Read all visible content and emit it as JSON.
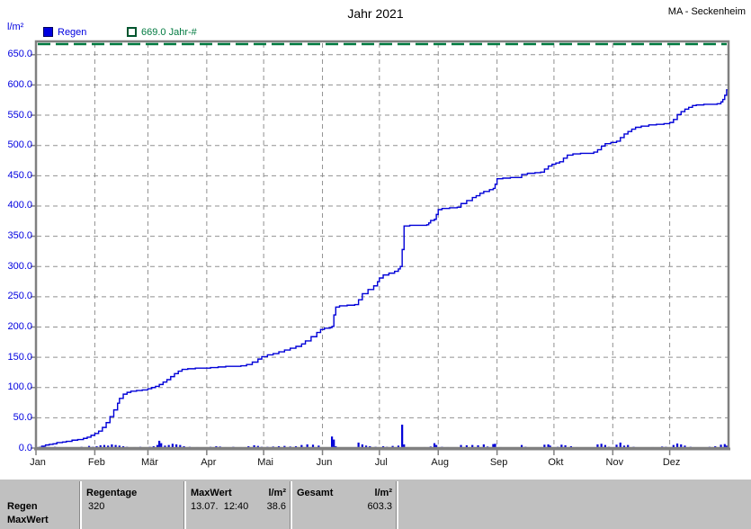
{
  "header": {
    "title": "Jahr 2021",
    "station": "MA - Seckenheim",
    "y_unit": "l/m²"
  },
  "legend": {
    "regen_label": "Regen",
    "threshold_label": "669.0 Jahr-#"
  },
  "colors": {
    "blue": "#0000d8",
    "blue_text": "#0000e0",
    "green": "#007a40",
    "grid": "#909090",
    "frame": "#808080",
    "table_bg": "#c0c0c0"
  },
  "chart_data": {
    "type": "line",
    "title": "Jahr 2021",
    "ylabel": "l/m²",
    "ylim": [
      0,
      672
    ],
    "grid": true,
    "threshold": {
      "value": 669,
      "label": "669.0 Jahr-#"
    },
    "y_tick_step": 50,
    "y_tick_labels": [
      "650.0",
      "600.0",
      "550.0",
      "500.0",
      "450.0",
      "400.0",
      "350.0",
      "300.0",
      "250.0",
      "200.0",
      "150.0",
      "100.0",
      "50.0",
      "0.0"
    ],
    "y_tick_values": [
      650,
      600,
      550,
      500,
      450,
      400,
      350,
      300,
      250,
      200,
      150,
      100,
      50,
      0
    ],
    "months": [
      "Jan",
      "Feb",
      "Mär",
      "Apr",
      "Mai",
      "Jun",
      "Jul",
      "Aug",
      "Sep",
      "Okt",
      "Nov",
      "Dez"
    ],
    "month_start_days": [
      0,
      31,
      59,
      90,
      120,
      151,
      181,
      212,
      243,
      273,
      304,
      334
    ],
    "days_in_year": 365,
    "series": [
      {
        "name": "Regen kumuliert (l/m²)",
        "points": [
          [
            0,
            0
          ],
          [
            2,
            1
          ],
          [
            3,
            3
          ],
          [
            5,
            5
          ],
          [
            7,
            6
          ],
          [
            9,
            7
          ],
          [
            11,
            9
          ],
          [
            14,
            10
          ],
          [
            16,
            11
          ],
          [
            19,
            13
          ],
          [
            22,
            14
          ],
          [
            25,
            16
          ],
          [
            27,
            18
          ],
          [
            29,
            21
          ],
          [
            31,
            24
          ],
          [
            33,
            28
          ],
          [
            35,
            34
          ],
          [
            37,
            42
          ],
          [
            39,
            52
          ],
          [
            41,
            63
          ],
          [
            43,
            74
          ],
          [
            44,
            82
          ],
          [
            46,
            89
          ],
          [
            48,
            92
          ],
          [
            50,
            94
          ],
          [
            53,
            95
          ],
          [
            56,
            96
          ],
          [
            59,
            98
          ],
          [
            61,
            100
          ],
          [
            63,
            102
          ],
          [
            65,
            105
          ],
          [
            67,
            109
          ],
          [
            69,
            113
          ],
          [
            71,
            118
          ],
          [
            73,
            123
          ],
          [
            75,
            127
          ],
          [
            77,
            130
          ],
          [
            80,
            131
          ],
          [
            84,
            132
          ],
          [
            88,
            132
          ],
          [
            92,
            133
          ],
          [
            96,
            134
          ],
          [
            100,
            135
          ],
          [
            104,
            135
          ],
          [
            108,
            136
          ],
          [
            111,
            138
          ],
          [
            114,
            142
          ],
          [
            117,
            147
          ],
          [
            119,
            151
          ],
          [
            122,
            154
          ],
          [
            125,
            156
          ],
          [
            128,
            159
          ],
          [
            131,
            162
          ],
          [
            134,
            165
          ],
          [
            137,
            168
          ],
          [
            140,
            172
          ],
          [
            142,
            177
          ],
          [
            145,
            184
          ],
          [
            148,
            191
          ],
          [
            150,
            196
          ],
          [
            152,
            198
          ],
          [
            155,
            199
          ],
          [
            156,
            201
          ],
          [
            157,
            220
          ],
          [
            158,
            233
          ],
          [
            160,
            235
          ],
          [
            164,
            236
          ],
          [
            168,
            237
          ],
          [
            170,
            245
          ],
          [
            172,
            255
          ],
          [
            175,
            262
          ],
          [
            178,
            268
          ],
          [
            180,
            275
          ],
          [
            181,
            281
          ],
          [
            183,
            286
          ],
          [
            186,
            289
          ],
          [
            189,
            292
          ],
          [
            191,
            296
          ],
          [
            192,
            300
          ],
          [
            193,
            328
          ],
          [
            194,
            367
          ],
          [
            197,
            368
          ],
          [
            202,
            368
          ],
          [
            206,
            369
          ],
          [
            207,
            372
          ],
          [
            208,
            376
          ],
          [
            210,
            378
          ],
          [
            211,
            386
          ],
          [
            212,
            394
          ],
          [
            214,
            396
          ],
          [
            218,
            397
          ],
          [
            222,
            398
          ],
          [
            224,
            404
          ],
          [
            227,
            409
          ],
          [
            230,
            414
          ],
          [
            232,
            417
          ],
          [
            234,
            421
          ],
          [
            236,
            424
          ],
          [
            239,
            427
          ],
          [
            241,
            429
          ],
          [
            242,
            436
          ],
          [
            243,
            445
          ],
          [
            246,
            446
          ],
          [
            250,
            447
          ],
          [
            254,
            447
          ],
          [
            256,
            452
          ],
          [
            259,
            454
          ],
          [
            263,
            455
          ],
          [
            266,
            456
          ],
          [
            268,
            461
          ],
          [
            270,
            466
          ],
          [
            272,
            469
          ],
          [
            274,
            471
          ],
          [
            276,
            473
          ],
          [
            278,
            479
          ],
          [
            280,
            484
          ],
          [
            283,
            486
          ],
          [
            287,
            487
          ],
          [
            291,
            487
          ],
          [
            294,
            489
          ],
          [
            296,
            493
          ],
          [
            298,
            499
          ],
          [
            300,
            503
          ],
          [
            303,
            505
          ],
          [
            306,
            507
          ],
          [
            308,
            513
          ],
          [
            310,
            519
          ],
          [
            312,
            523
          ],
          [
            314,
            527
          ],
          [
            316,
            530
          ],
          [
            319,
            532
          ],
          [
            323,
            534
          ],
          [
            327,
            535
          ],
          [
            331,
            536
          ],
          [
            334,
            538
          ],
          [
            336,
            543
          ],
          [
            338,
            551
          ],
          [
            340,
            556
          ],
          [
            342,
            560
          ],
          [
            344,
            563
          ],
          [
            346,
            566
          ],
          [
            348,
            567
          ],
          [
            352,
            568
          ],
          [
            356,
            568
          ],
          [
            359,
            569
          ],
          [
            361,
            572
          ],
          [
            362,
            576
          ],
          [
            363,
            583
          ],
          [
            364,
            592
          ],
          [
            365,
            603
          ]
        ]
      }
    ],
    "daily_bars": [
      [
        2,
        2
      ],
      [
        4,
        3
      ],
      [
        7,
        1.5
      ],
      [
        10,
        2
      ],
      [
        13,
        1
      ],
      [
        16,
        1.5
      ],
      [
        20,
        1
      ],
      [
        24,
        2
      ],
      [
        28,
        3.5
      ],
      [
        30,
        2
      ],
      [
        32,
        3
      ],
      [
        34,
        4.5
      ],
      [
        36,
        5
      ],
      [
        38,
        4
      ],
      [
        40,
        6
      ],
      [
        42,
        5
      ],
      [
        44,
        4
      ],
      [
        46,
        3
      ],
      [
        48,
        2
      ],
      [
        52,
        1.5
      ],
      [
        55,
        2
      ],
      [
        60,
        2
      ],
      [
        62,
        3
      ],
      [
        64,
        5
      ],
      [
        65,
        12
      ],
      [
        66,
        8
      ],
      [
        68,
        4
      ],
      [
        70,
        5
      ],
      [
        72,
        7
      ],
      [
        74,
        6
      ],
      [
        76,
        5
      ],
      [
        78,
        3
      ],
      [
        81,
        2
      ],
      [
        85,
        1.5
      ],
      [
        92,
        2
      ],
      [
        95,
        3
      ],
      [
        97,
        2.5
      ],
      [
        100,
        1.5
      ],
      [
        104,
        2
      ],
      [
        108,
        1.5
      ],
      [
        112,
        3
      ],
      [
        115,
        4.5
      ],
      [
        117,
        3.5
      ],
      [
        119,
        2
      ],
      [
        122,
        2
      ],
      [
        125,
        2.5
      ],
      [
        128,
        3
      ],
      [
        131,
        3.5
      ],
      [
        134,
        2.5
      ],
      [
        137,
        3
      ],
      [
        140,
        5
      ],
      [
        143,
        6
      ],
      [
        146,
        5.5
      ],
      [
        149,
        4
      ],
      [
        153,
        1.5
      ],
      [
        156,
        19
      ],
      [
        157,
        14
      ],
      [
        158,
        3
      ],
      [
        165,
        1
      ],
      [
        170,
        9
      ],
      [
        172,
        6
      ],
      [
        174,
        4
      ],
      [
        176,
        3
      ],
      [
        179,
        2
      ],
      [
        183,
        3
      ],
      [
        185,
        2
      ],
      [
        188,
        3.5
      ],
      [
        191,
        4
      ],
      [
        193,
        38.6
      ],
      [
        194,
        6
      ],
      [
        200,
        1
      ],
      [
        205,
        1.5
      ],
      [
        208,
        2.5
      ],
      [
        210,
        8
      ],
      [
        211,
        5
      ],
      [
        214,
        2
      ],
      [
        217,
        1.5
      ],
      [
        220,
        1
      ],
      [
        224,
        5
      ],
      [
        227,
        4.5
      ],
      [
        230,
        5
      ],
      [
        233,
        4.5
      ],
      [
        236,
        6
      ],
      [
        238,
        2.5
      ],
      [
        241,
        6.5
      ],
      [
        242,
        7
      ],
      [
        245,
        1.5
      ],
      [
        248,
        1
      ],
      [
        256,
        5
      ],
      [
        258,
        2
      ],
      [
        263,
        1
      ],
      [
        268,
        5.5
      ],
      [
        270,
        6
      ],
      [
        271,
        4
      ],
      [
        275,
        2
      ],
      [
        277,
        5.5
      ],
      [
        279,
        4.5
      ],
      [
        282,
        3
      ],
      [
        285,
        1.5
      ],
      [
        290,
        1
      ],
      [
        296,
        6
      ],
      [
        298,
        7
      ],
      [
        300,
        5
      ],
      [
        302,
        2
      ],
      [
        306,
        5.5
      ],
      [
        308,
        9
      ],
      [
        310,
        4
      ],
      [
        312,
        5
      ],
      [
        315,
        2
      ],
      [
        318,
        1
      ],
      [
        325,
        1.5
      ],
      [
        330,
        2.5
      ],
      [
        332,
        2
      ],
      [
        336,
        5
      ],
      [
        338,
        7.5
      ],
      [
        340,
        6
      ],
      [
        342,
        4
      ],
      [
        345,
        2
      ],
      [
        350,
        1
      ],
      [
        355,
        2
      ],
      [
        358,
        3
      ],
      [
        361,
        5.5
      ],
      [
        363,
        6.5
      ],
      [
        364,
        4
      ]
    ]
  },
  "footer": {
    "row_label_1": "Regen",
    "row_label_2": "MaxWert",
    "col_regentage": {
      "header": "Regentage",
      "value": "320"
    },
    "col_maxwert": {
      "header": "MaxWert",
      "unit": "l/m²",
      "value_time": "13.07.  12:40",
      "value_amount": "38.6"
    },
    "col_gesamt": {
      "header": "Gesamt",
      "unit": "l/m²",
      "value_amount": "603.3"
    }
  }
}
